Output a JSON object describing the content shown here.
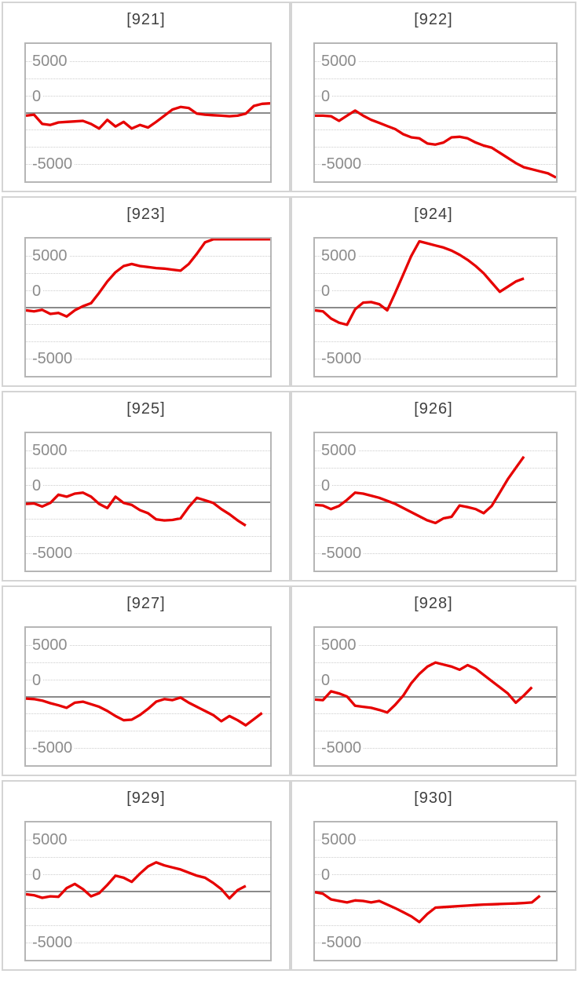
{
  "page": {
    "background": "#ffffff"
  },
  "chart_config": {
    "rows": 5,
    "cols": 2,
    "type": "line",
    "line_color": "#e60000",
    "zero_line_color": "#8a8a8a",
    "gridline_color": "#cdcdcd",
    "plot_border_color": "#b6b6b6",
    "row_border_color": "#d4d4d4",
    "title_color": "#3f3f3f",
    "tick_color": "#8c8c8c",
    "ylim": [
      -6667,
      6667
    ],
    "yticks": [
      5000,
      0,
      -5000
    ],
    "ytick_labels": [
      "5000",
      "0",
      "-5000"
    ],
    "grid_step": 1667,
    "x_intervals": 30,
    "grid_on": true
  },
  "chart_data": [
    {
      "type": "line",
      "title": "[921]",
      "xlabel": "",
      "ylabel": "",
      "ylim": [
        -6667,
        6667
      ],
      "values": [
        -300,
        -200,
        -1100,
        -1200,
        -950,
        -900,
        -850,
        -800,
        -1100,
        -1550,
        -700,
        -1350,
        -900,
        -1550,
        -1200,
        -1450,
        -900,
        -300,
        300,
        550,
        450,
        -100,
        -200,
        -250,
        -300,
        -350,
        -300,
        -100,
        650,
        850,
        900
      ]
    },
    {
      "type": "line",
      "title": "[922]",
      "xlabel": "",
      "ylabel": "",
      "ylim": [
        -6667,
        6667
      ],
      "values": [
        -300,
        -300,
        -350,
        -800,
        -300,
        200,
        -300,
        -700,
        -1000,
        -1300,
        -1600,
        -2100,
        -2400,
        -2500,
        -3000,
        -3100,
        -2900,
        -2400,
        -2350,
        -2500,
        -2900,
        -3200,
        -3400,
        -3900,
        -4400,
        -4900,
        -5300,
        -5500,
        -5700,
        -5900,
        -6300
      ]
    },
    {
      "type": "line",
      "title": "[923]",
      "xlabel": "",
      "ylabel": "",
      "ylim": [
        -6667,
        6667
      ],
      "values": [
        -300,
        -400,
        -250,
        -650,
        -550,
        -900,
        -300,
        100,
        400,
        1400,
        2500,
        3400,
        4000,
        4200,
        4000,
        3900,
        3800,
        3750,
        3650,
        3550,
        4200,
        5200,
        6300,
        6600,
        6600,
        6600,
        6600,
        6600,
        6600,
        6600,
        6600
      ]
    },
    {
      "type": "line",
      "title": "[924]",
      "xlabel": "",
      "ylabel": "",
      "ylim": [
        -6667,
        6667
      ],
      "values": [
        -300,
        -400,
        -1100,
        -1500,
        -1700,
        -200,
        450,
        500,
        300,
        -300,
        1400,
        3200,
        5000,
        6400,
        6200,
        6000,
        5800,
        5500,
        5100,
        4600,
        4000,
        3300,
        2400,
        1500,
        2000,
        2500,
        2800
      ]
    },
    {
      "type": "line",
      "title": "[925]",
      "xlabel": "",
      "ylabel": "",
      "ylim": [
        -6667,
        6667
      ],
      "values": [
        -200,
        -150,
        -450,
        -100,
        700,
        500,
        800,
        900,
        500,
        -200,
        -600,
        500,
        -100,
        -300,
        -800,
        -1100,
        -1700,
        -1800,
        -1750,
        -1600,
        -500,
        400,
        150,
        -100,
        -700,
        -1200,
        -1800,
        -2300
      ]
    },
    {
      "type": "line",
      "title": "[926]",
      "xlabel": "",
      "ylabel": "",
      "ylim": [
        -6667,
        6667
      ],
      "values": [
        -300,
        -350,
        -700,
        -400,
        200,
        900,
        800,
        600,
        400,
        100,
        -200,
        -600,
        -1000,
        -1400,
        -1800,
        -2050,
        -1600,
        -1450,
        -350,
        -500,
        -700,
        -1100,
        -400,
        900,
        2200,
        3300,
        4400
      ]
    },
    {
      "type": "line",
      "title": "[927]",
      "xlabel": "",
      "ylabel": "",
      "ylim": [
        -6667,
        6667
      ],
      "values": [
        -200,
        -250,
        -400,
        -650,
        -850,
        -1100,
        -600,
        -500,
        -750,
        -1000,
        -1400,
        -1900,
        -2300,
        -2250,
        -1800,
        -1200,
        -500,
        -250,
        -350,
        -100,
        -600,
        -1000,
        -1400,
        -1800,
        -2400,
        -1900,
        -2300,
        -2800,
        -2200,
        -1600
      ]
    },
    {
      "type": "line",
      "title": "[928]",
      "xlabel": "",
      "ylabel": "",
      "ylim": [
        -6667,
        6667
      ],
      "values": [
        -300,
        -350,
        500,
        300,
        0,
        -900,
        -1000,
        -1100,
        -1300,
        -1550,
        -800,
        100,
        1300,
        2200,
        2900,
        3300,
        3100,
        2900,
        2600,
        3050,
        2700,
        2100,
        1500,
        900,
        300,
        -600,
        100,
        900
      ]
    },
    {
      "type": "line",
      "title": "[929]",
      "xlabel": "",
      "ylabel": "",
      "ylim": [
        -6667,
        6667
      ],
      "values": [
        -300,
        -400,
        -650,
        -500,
        -550,
        300,
        700,
        200,
        -500,
        -200,
        600,
        1500,
        1300,
        900,
        1700,
        2400,
        2800,
        2500,
        2300,
        2100,
        1800,
        1500,
        1300,
        800,
        200,
        -700,
        100,
        500
      ]
    },
    {
      "type": "line",
      "title": "[930]",
      "xlabel": "",
      "ylabel": "",
      "ylim": [
        -6667,
        6667
      ],
      "values": [
        -100,
        -250,
        -800,
        -950,
        -1100,
        -900,
        -950,
        -1100,
        -950,
        -1300,
        -1650,
        -2050,
        -2450,
        -3000,
        -2200,
        -1600,
        -1550,
        -1500,
        -1450,
        -1400,
        -1350,
        -1300,
        -1280,
        -1250,
        -1220,
        -1200,
        -1150,
        -1100,
        -450
      ]
    }
  ]
}
